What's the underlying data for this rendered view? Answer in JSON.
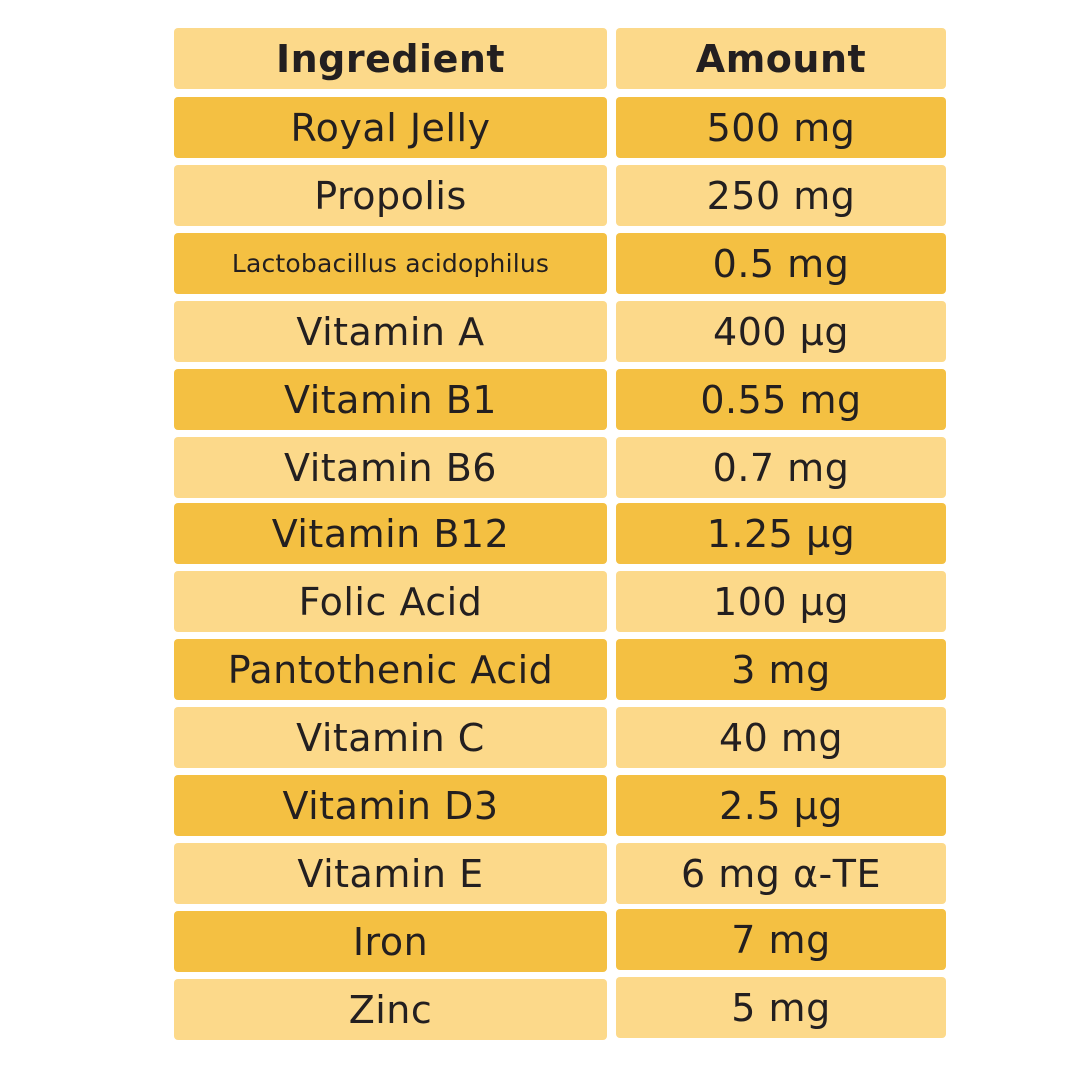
{
  "colors": {
    "light_row": "#fcd98a",
    "dark_row": "#f4c042",
    "text": "#231f20",
    "background": "#ffffff"
  },
  "header": {
    "ingredient": "Ingredient",
    "amount": "Amount"
  },
  "rows": [
    {
      "ingredient": "Royal Jelly",
      "amount": "500 mg"
    },
    {
      "ingredient": "Propolis",
      "amount": "250 mg"
    },
    {
      "ingredient": "Lactobacillus acidophilus",
      "amount": "0.5 mg"
    },
    {
      "ingredient": "Vitamin A",
      "amount": "400 μg"
    },
    {
      "ingredient": "Vitamin B1",
      "amount": "0.55 mg"
    },
    {
      "ingredient": "Vitamin B6",
      "amount": "0.7 mg"
    },
    {
      "ingredient": "Vitamin B12",
      "amount": "1.25 μg"
    },
    {
      "ingredient": "Folic Acid",
      "amount": "100 μg"
    },
    {
      "ingredient": "Pantothenic Acid",
      "amount": "3 mg"
    },
    {
      "ingredient": "Vitamin C",
      "amount": "40 mg"
    },
    {
      "ingredient": "Vitamin D3",
      "amount": "2.5 μg"
    },
    {
      "ingredient": "Vitamin E",
      "amount": "6 mg α-TE"
    },
    {
      "ingredient": "Iron",
      "amount": "7 mg"
    },
    {
      "ingredient": "Zinc",
      "amount": "5 mg"
    }
  ]
}
